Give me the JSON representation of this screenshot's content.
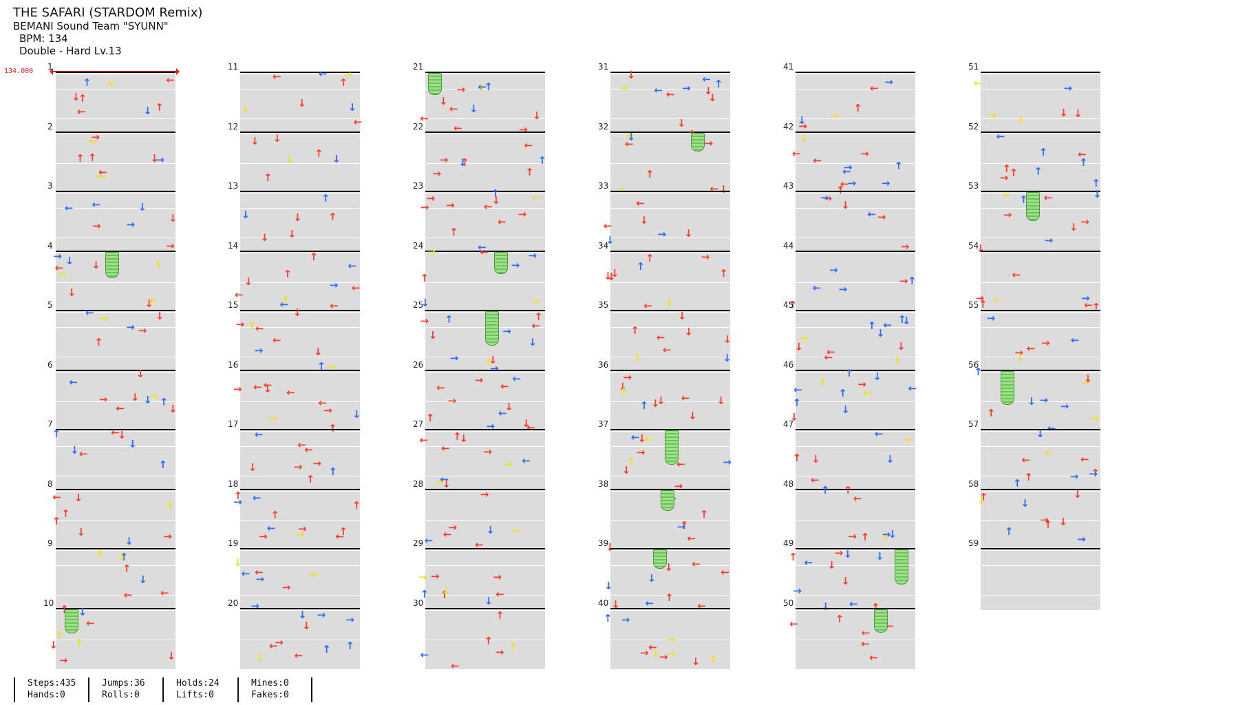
{
  "header": {
    "title": "THE SAFARI (STARDOM Remix)",
    "artist": "BEMANI Sound Team \"SYUNN\"",
    "bpm": "BPM: 134",
    "difficulty": "Double - Hard Lv.13",
    "bpm_marker": "134.000"
  },
  "measures": [
    "1",
    "2",
    "3",
    "4",
    "5",
    "6",
    "7",
    "8",
    "9",
    "10",
    "11",
    "12",
    "13",
    "14",
    "15",
    "16",
    "17",
    "18",
    "19",
    "20",
    "21",
    "22",
    "23",
    "24",
    "25",
    "26",
    "27",
    "28",
    "29",
    "30",
    "31",
    "32",
    "33",
    "34",
    "35",
    "36",
    "37",
    "38",
    "39",
    "40",
    "41",
    "42",
    "43",
    "44",
    "45",
    "46",
    "47",
    "48",
    "49",
    "50",
    "51",
    "52",
    "53",
    "54",
    "55",
    "56",
    "57",
    "58",
    "59"
  ],
  "colors": {
    "red": "#ff3b30",
    "blue": "#2f6bff",
    "yellow": "#f2e21a",
    "magenta": "#ee33ee",
    "green": "#7fd06a"
  },
  "stats": {
    "col1": [
      "Steps:435",
      "Hands:0"
    ],
    "col2": [
      "Jumps:36",
      "Rolls:0"
    ],
    "col3": [
      "Holds:24",
      "Lifts:0"
    ],
    "col4": [
      "Mines:0",
      "Fakes:0"
    ]
  }
}
